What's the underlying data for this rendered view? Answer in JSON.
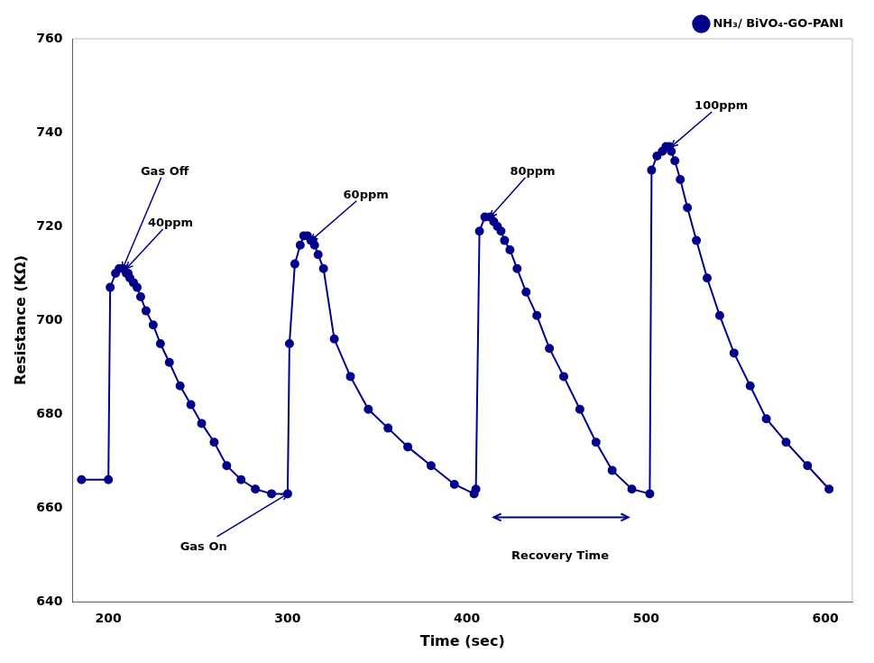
{
  "chart_data": {
    "type": "line",
    "xlabel": "Time (sec)",
    "ylabel": "Resistance (KΩ)",
    "xlim": [
      180,
      615
    ],
    "ylim": [
      640,
      760
    ],
    "xticks": [
      200,
      300,
      400,
      500,
      600
    ],
    "yticks": [
      640,
      660,
      680,
      700,
      720,
      740,
      760
    ],
    "grid": false,
    "legend": "upper right",
    "x": [
      185,
      200,
      201,
      204,
      206,
      208,
      210,
      211,
      212,
      214,
      216,
      218,
      221,
      225,
      229,
      234,
      240,
      246,
      252,
      259,
      266,
      274,
      282,
      291,
      300,
      301,
      304,
      307,
      309,
      311,
      313,
      314,
      315,
      317,
      320,
      326,
      335,
      345,
      356,
      367,
      380,
      393,
      404,
      405,
      407,
      410,
      413,
      415,
      417,
      419,
      421,
      424,
      428,
      433,
      439,
      446,
      454,
      463,
      472,
      481,
      492,
      502,
      503,
      506,
      509,
      511,
      513,
      514,
      516,
      519,
      523,
      528,
      534,
      541,
      549,
      558,
      567,
      578,
      590,
      602
    ],
    "series": [
      {
        "name": "NH₃/ BiVO₄-GO-PANI",
        "color": "#00008B",
        "marker": "circle",
        "line_style": "solid",
        "values": [
          666,
          666,
          707,
          710,
          711,
          711,
          710,
          710,
          709,
          708,
          707,
          705,
          702,
          699,
          695,
          691,
          686,
          682,
          678,
          674,
          669,
          666,
          664,
          663,
          663,
          695,
          712,
          716,
          718,
          718,
          717,
          717,
          716,
          714,
          711,
          696,
          688,
          681,
          677,
          673,
          669,
          665,
          663,
          664,
          719,
          722,
          722,
          721,
          720,
          719,
          717,
          715,
          711,
          706,
          701,
          694,
          688,
          681,
          674,
          668,
          664,
          663,
          732,
          735,
          736,
          737,
          737,
          736,
          734,
          730,
          724,
          717,
          709,
          701,
          693,
          686,
          679,
          674,
          669,
          664
        ]
      }
    ],
    "annotations": [
      {
        "text": "40ppm",
        "xy": [
          210,
          711
        ],
        "xytext": [
          222,
          720
        ]
      },
      {
        "text": "Gas Off",
        "xy": [
          208,
          711
        ],
        "xytext": [
          218,
          731
        ]
      },
      {
        "text": "Gas On",
        "xy": [
          300,
          663
        ],
        "xytext": [
          240,
          651
        ]
      },
      {
        "text": "60ppm",
        "xy": [
          313,
          717
        ],
        "xytext": [
          331,
          726
        ]
      },
      {
        "text": "80ppm",
        "xy": [
          413,
          722
        ],
        "xytext": [
          424,
          731
        ]
      },
      {
        "text": "100ppm",
        "xy": [
          514,
          737
        ],
        "xytext": [
          527,
          745
        ]
      },
      {
        "text": "Recovery Time",
        "xy": [
          452,
          649
        ],
        "span": [
          [
            415,
            658
          ],
          [
            490,
            658
          ]
        ]
      }
    ]
  }
}
